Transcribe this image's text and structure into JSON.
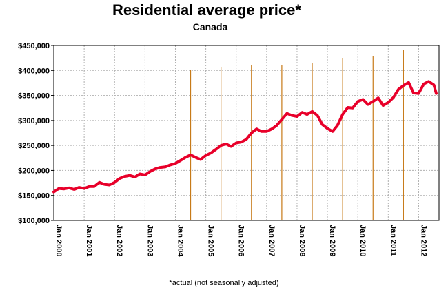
{
  "chart_data": {
    "type": "line",
    "title": "Residential average price*",
    "subtitle": "Canada",
    "footnote": "*actual (not seasonally adjusted)",
    "xlabel": "",
    "ylabel": "",
    "ylim": [
      100000,
      450000
    ],
    "y_ticks": [
      100000,
      150000,
      200000,
      250000,
      300000,
      350000,
      400000,
      450000
    ],
    "y_tick_labels": [
      "$100,000",
      "$150,000",
      "$200,000",
      "$250,000",
      "$300,000",
      "$350,000",
      "$400,000",
      "$450,000"
    ],
    "x_tick_labels": [
      "Jan 2000",
      "Jan 2001",
      "Jan 2002",
      "Jan 2003",
      "Jan 2004",
      "Jan 2005",
      "Jan 2006",
      "Jan 2007",
      "Jan 2008",
      "Jan 2009",
      "Jan 2010",
      "Jan 2011",
      "Jan 2012"
    ],
    "x_start": "2000-01",
    "x_end": "2012-08",
    "grid": true,
    "line_color": "#e8002a",
    "series": [
      {
        "name": "",
        "values": [
          [
            2000.0,
            157000
          ],
          [
            2000.17,
            164000
          ],
          [
            2000.33,
            163000
          ],
          [
            2000.5,
            165000
          ],
          [
            2000.67,
            162000
          ],
          [
            2000.83,
            166000
          ],
          [
            2001.0,
            164000
          ],
          [
            2001.17,
            168000
          ],
          [
            2001.33,
            168000
          ],
          [
            2001.5,
            176000
          ],
          [
            2001.67,
            172000
          ],
          [
            2001.83,
            171000
          ],
          [
            2002.0,
            176000
          ],
          [
            2002.17,
            184000
          ],
          [
            2002.33,
            188000
          ],
          [
            2002.5,
            190000
          ],
          [
            2002.67,
            187000
          ],
          [
            2002.83,
            193000
          ],
          [
            2003.0,
            191000
          ],
          [
            2003.17,
            198000
          ],
          [
            2003.33,
            203000
          ],
          [
            2003.5,
            206000
          ],
          [
            2003.67,
            207000
          ],
          [
            2003.83,
            211000
          ],
          [
            2004.0,
            214000
          ],
          [
            2004.17,
            220000
          ],
          [
            2004.33,
            226000
          ],
          [
            2004.5,
            231000
          ],
          [
            2004.67,
            226000
          ],
          [
            2004.83,
            222000
          ],
          [
            2005.0,
            230000
          ],
          [
            2005.17,
            235000
          ],
          [
            2005.33,
            242000
          ],
          [
            2005.5,
            250000
          ],
          [
            2005.67,
            253000
          ],
          [
            2005.83,
            248000
          ],
          [
            2006.0,
            255000
          ],
          [
            2006.17,
            257000
          ],
          [
            2006.33,
            262000
          ],
          [
            2006.5,
            275000
          ],
          [
            2006.67,
            283000
          ],
          [
            2006.83,
            278000
          ],
          [
            2007.0,
            278000
          ],
          [
            2007.17,
            283000
          ],
          [
            2007.33,
            290000
          ],
          [
            2007.5,
            302000
          ],
          [
            2007.67,
            314000
          ],
          [
            2007.83,
            310000
          ],
          [
            2008.0,
            308000
          ],
          [
            2008.17,
            316000
          ],
          [
            2008.33,
            312000
          ],
          [
            2008.5,
            318000
          ],
          [
            2008.67,
            310000
          ],
          [
            2008.83,
            292000
          ],
          [
            2009.0,
            284000
          ],
          [
            2009.17,
            278000
          ],
          [
            2009.33,
            290000
          ],
          [
            2009.5,
            312000
          ],
          [
            2009.67,
            326000
          ],
          [
            2009.83,
            325000
          ],
          [
            2010.0,
            338000
          ],
          [
            2010.17,
            342000
          ],
          [
            2010.33,
            332000
          ],
          [
            2010.5,
            338000
          ],
          [
            2010.67,
            345000
          ],
          [
            2010.83,
            330000
          ],
          [
            2011.0,
            336000
          ],
          [
            2011.17,
            346000
          ],
          [
            2011.33,
            362000
          ],
          [
            2011.5,
            370000
          ],
          [
            2011.67,
            376000
          ],
          [
            2011.83,
            355000
          ],
          [
            2012.0,
            354000
          ],
          [
            2012.17,
            373000
          ],
          [
            2012.33,
            378000
          ],
          [
            2012.5,
            371000
          ],
          [
            2012.58,
            354000
          ]
        ]
      }
    ],
    "markers": [
      2004.5,
      2005.5,
      2006.5,
      2007.5,
      2008.5,
      2009.5,
      2010.5,
      2011.5
    ]
  }
}
